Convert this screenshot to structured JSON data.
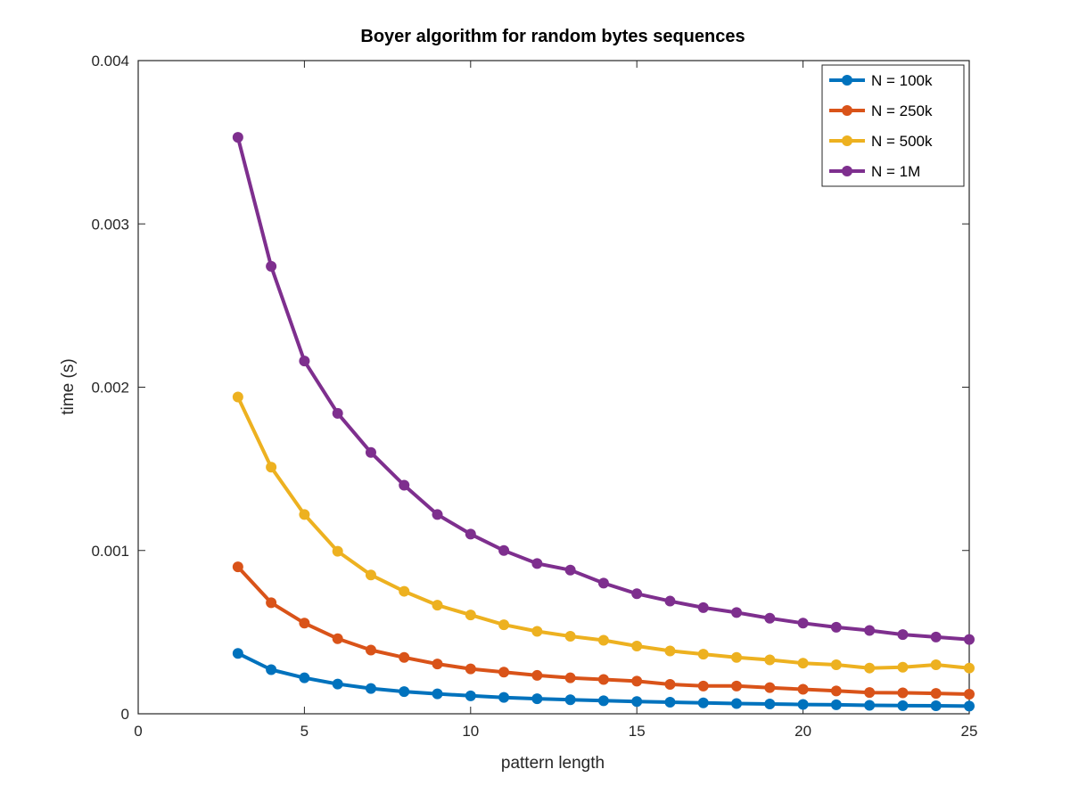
{
  "chart_data": {
    "type": "line",
    "title": "Boyer algorithm for random bytes sequences",
    "xlabel": "pattern length",
    "ylabel": "time (s)",
    "xlim": [
      0,
      25
    ],
    "ylim": [
      0,
      0.004
    ],
    "xticks": [
      0,
      5,
      10,
      15,
      20,
      25
    ],
    "xtick_labels": [
      "0",
      "5",
      "10",
      "15",
      "20",
      "25"
    ],
    "yticks": [
      0,
      0.001,
      0.002,
      0.003,
      0.004
    ],
    "ytick_labels": [
      "0",
      "0.001",
      "0.002",
      "0.003",
      "0.004"
    ],
    "grid": false,
    "legend_position": "top-right",
    "x": [
      3,
      4,
      5,
      6,
      7,
      8,
      9,
      10,
      11,
      12,
      13,
      14,
      15,
      16,
      17,
      18,
      19,
      20,
      21,
      22,
      23,
      24,
      25
    ],
    "series": [
      {
        "name": "N = 100k",
        "color": "#0072BD",
        "values": [
          0.00037,
          0.00027,
          0.00022,
          0.000182,
          0.000155,
          0.000136,
          0.000122,
          0.00011,
          0.0001,
          9.2e-05,
          8.6e-05,
          8e-05,
          7.5e-05,
          7.1e-05,
          6.7e-05,
          6.3e-05,
          6e-05,
          5.7e-05,
          5.5e-05,
          5.2e-05,
          5e-05,
          4.9e-05,
          4.7e-05
        ]
      },
      {
        "name": "N = 250k",
        "color": "#D95319",
        "values": [
          0.0009,
          0.00068,
          0.000555,
          0.00046,
          0.00039,
          0.000345,
          0.000305,
          0.000275,
          0.000255,
          0.000235,
          0.00022,
          0.00021,
          0.0002,
          0.00018,
          0.00017,
          0.00017,
          0.00016,
          0.00015,
          0.00014,
          0.00013,
          0.000128,
          0.000125,
          0.00012
        ]
      },
      {
        "name": "N = 500k",
        "color": "#EDB120",
        "values": [
          0.00194,
          0.00151,
          0.00122,
          0.000995,
          0.00085,
          0.00075,
          0.000665,
          0.000605,
          0.000545,
          0.000505,
          0.000475,
          0.00045,
          0.000415,
          0.000385,
          0.000365,
          0.000345,
          0.00033,
          0.00031,
          0.0003,
          0.00028,
          0.000285,
          0.0003,
          0.00028
        ]
      },
      {
        "name": "N = 1M",
        "color": "#7E2F8E",
        "values": [
          0.00353,
          0.00274,
          0.00216,
          0.00184,
          0.0016,
          0.0014,
          0.00122,
          0.0011,
          0.001,
          0.00092,
          0.00088,
          0.0008,
          0.000735,
          0.00069,
          0.00065,
          0.00062,
          0.000585,
          0.000555,
          0.00053,
          0.00051,
          0.000485,
          0.00047,
          0.000455
        ]
      }
    ]
  }
}
